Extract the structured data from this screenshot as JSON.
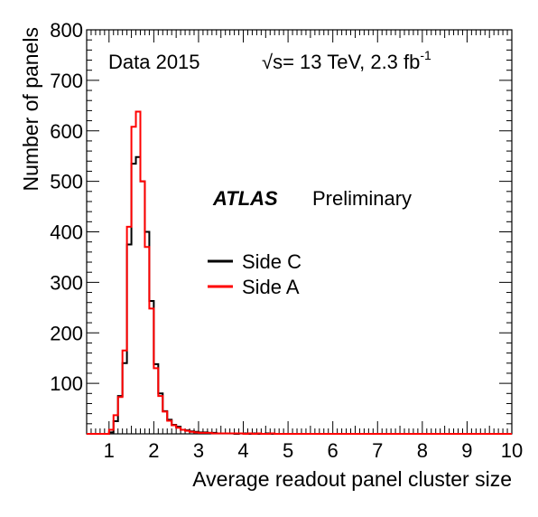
{
  "chart_data": {
    "type": "histogram",
    "xlabel": "Average readout panel cluster size",
    "ylabel": "Number of panels",
    "xlim": [
      0.5,
      10
    ],
    "ylim": [
      0,
      800
    ],
    "x_ticks": [
      1,
      2,
      3,
      4,
      5,
      6,
      7,
      8,
      9,
      10
    ],
    "y_ticks": [
      100,
      200,
      300,
      400,
      500,
      600,
      700,
      800
    ],
    "y_tick_labels": [
      "100",
      "200",
      "300",
      "400",
      "500",
      "600",
      "700",
      "800"
    ],
    "bin_width": 0.1,
    "series": [
      {
        "name": "Side C",
        "color": "#000000",
        "edges_start": 0.5,
        "values": [
          0,
          0,
          0,
          0,
          0,
          3,
          25,
          75,
          140,
          375,
          535,
          548,
          500,
          400,
          263,
          138,
          80,
          45,
          28,
          18,
          14,
          8,
          7,
          5,
          4,
          3,
          3,
          2,
          2,
          1,
          1,
          1,
          1,
          0,
          1,
          1,
          0,
          1,
          0,
          0,
          1,
          0,
          0,
          0,
          0,
          0,
          0,
          0,
          0,
          0,
          0,
          0,
          0,
          0,
          0,
          0,
          0,
          0,
          0,
          0,
          0,
          0,
          0,
          0,
          0,
          0,
          0,
          0,
          0,
          0,
          0,
          0,
          0,
          0,
          0,
          0,
          0,
          0,
          0,
          0,
          0,
          0,
          0,
          0,
          0,
          0,
          0,
          0,
          0,
          0,
          0,
          0,
          0,
          0,
          0
        ]
      },
      {
        "name": "Side A",
        "color": "#ff0000",
        "edges_start": 0.5,
        "values": [
          0,
          0,
          0,
          0,
          0,
          8,
          37,
          73,
          165,
          410,
          608,
          638,
          500,
          370,
          248,
          130,
          75,
          44,
          26,
          17,
          12,
          8,
          6,
          4,
          3,
          2,
          2,
          2,
          1,
          1,
          1,
          1,
          1,
          1,
          1,
          0,
          1,
          0,
          1,
          0,
          0,
          1,
          0,
          0,
          0,
          0,
          0,
          0,
          0,
          0,
          0,
          0,
          0,
          0,
          0,
          0,
          0,
          0,
          0,
          0,
          0,
          0,
          0,
          0,
          0,
          0,
          0,
          0,
          0,
          0,
          0,
          0,
          0,
          0,
          0,
          0,
          0,
          0,
          0,
          0,
          0,
          0,
          0,
          0,
          0,
          0,
          0,
          0,
          0,
          0,
          0,
          0,
          0,
          0,
          0
        ]
      }
    ],
    "annotations": {
      "data_label": "Data 2015",
      "energy_prefix": "√s= 13 TeV, 2.3 fb",
      "energy_sup": "-1",
      "atlas": "ATLAS",
      "preliminary": "Preliminary"
    },
    "legend": [
      {
        "name": "Side C",
        "color": "#000000"
      },
      {
        "name": "Side A",
        "color": "#ff0000"
      }
    ]
  }
}
